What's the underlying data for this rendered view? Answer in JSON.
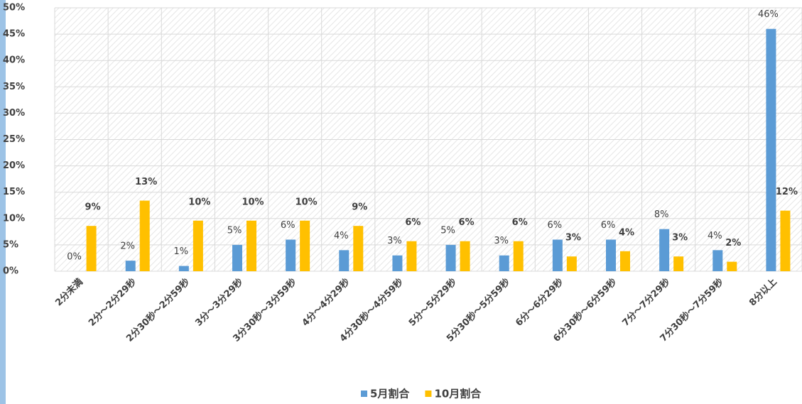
{
  "chart_data": {
    "type": "bar",
    "categories": [
      "2分未満",
      "2分～2分29秒",
      "2分30秒～2分59秒",
      "3分～3分29秒",
      "3分30秒～3分59秒",
      "4分～4分29秒",
      "4分30秒～4分59秒",
      "5分～5分29秒",
      "5分30秒～5分59秒",
      "6分～6分29秒",
      "6分30秒～6分59秒",
      "7分～7分29秒",
      "7分30秒～7分59秒",
      "8分以上"
    ],
    "series": [
      {
        "name": "5月割合",
        "color": "#5b9bd5",
        "values": [
          0,
          2,
          1,
          5,
          6,
          4,
          3,
          5,
          3,
          6,
          6,
          8,
          4,
          46
        ],
        "value_labels": [
          "0%",
          "2%",
          "1%",
          "5%",
          "6%",
          "4%",
          "3%",
          "5%",
          "3%",
          "6%",
          "6%",
          "8%",
          "4%",
          "46%"
        ]
      },
      {
        "name": "10月割合",
        "color": "#ffc000",
        "values": [
          8.6,
          13.4,
          9.6,
          9.6,
          9.6,
          8.6,
          5.7,
          5.7,
          5.7,
          2.8,
          3.8,
          2.8,
          1.8,
          11.5
        ],
        "value_labels": [
          "9%",
          "13%",
          "10%",
          "10%",
          "10%",
          "9%",
          "6%",
          "6%",
          "6%",
          "3%",
          "4%",
          "3%",
          "2%",
          "12%"
        ]
      }
    ],
    "ylim": [
      0,
      50
    ],
    "yticks": [
      {
        "value": 0,
        "label": "0%"
      },
      {
        "value": 5,
        "label": "5%"
      },
      {
        "value": 10,
        "label": "10%"
      },
      {
        "value": 15,
        "label": "15%"
      },
      {
        "value": 20,
        "label": "20%"
      },
      {
        "value": 25,
        "label": "25%"
      },
      {
        "value": 30,
        "label": "30%"
      },
      {
        "value": 35,
        "label": "35%"
      },
      {
        "value": 40,
        "label": "40%"
      },
      {
        "value": 45,
        "label": "45%"
      },
      {
        "value": 50,
        "label": "50%"
      }
    ],
    "grid": true,
    "legend": "bottom"
  }
}
